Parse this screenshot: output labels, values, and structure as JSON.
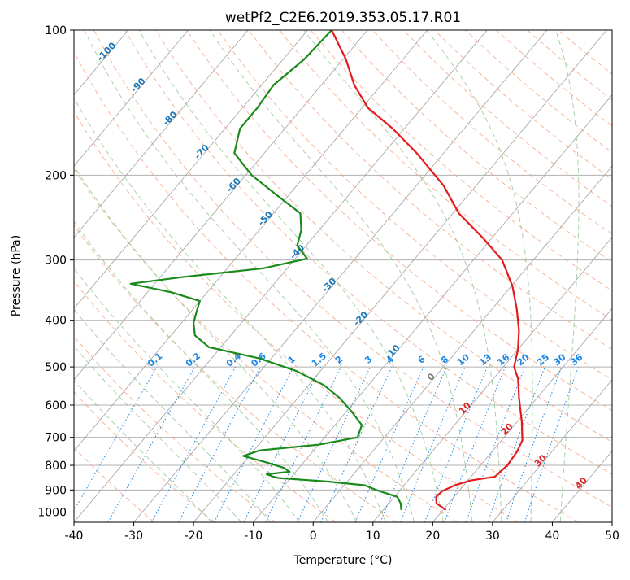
{
  "chart_data": {
    "type": "line",
    "subtype": "skew-T log-P thermodynamic diagram",
    "title": "wetPf2_C2E6.2019.353.05.17.R01",
    "xlabel": "Temperature (°C)",
    "ylabel": "Pressure (hPa)",
    "xlim": [
      -40,
      50
    ],
    "ylim": [
      1050,
      100
    ],
    "y_scale": "log",
    "x_ticks": [
      -40,
      -30,
      -20,
      -10,
      0,
      10,
      20,
      30,
      40,
      50
    ],
    "y_ticks": [
      1000,
      900,
      800,
      700,
      600,
      500,
      400,
      300,
      200,
      100
    ],
    "grid": true,
    "background_lines": {
      "isotherms_color": "#a0a0a0",
      "dry_adiabats_color": "#f4a582",
      "moist_adiabats_color": "#92c592",
      "mixing_ratio_color": "#1e88e5",
      "isotherm_labels": [
        "-100",
        "-90",
        "-80",
        "-70",
        "-60",
        "-50",
        "-40",
        "-30",
        "-20",
        "-10",
        "0",
        "10",
        "20",
        "30",
        "40"
      ],
      "mixing_ratio_labels": [
        "0.1",
        "0.2",
        "0.4",
        "0.6",
        "1",
        "1.5",
        "2",
        "3",
        "4",
        "6",
        "8",
        "10",
        "13",
        "16",
        "20",
        "25",
        "30",
        "36"
      ]
    },
    "series": [
      {
        "color": "#e41a1c",
        "points": [
          {
            "p": 990,
            "t": 20.5
          },
          {
            "p": 960,
            "t": 18.0
          },
          {
            "p": 930,
            "t": 17.0
          },
          {
            "p": 905,
            "t": 17.2
          },
          {
            "p": 880,
            "t": 18.5
          },
          {
            "p": 860,
            "t": 20.5
          },
          {
            "p": 845,
            "t": 24.0
          },
          {
            "p": 800,
            "t": 24.5
          },
          {
            "p": 750,
            "t": 24.2
          },
          {
            "p": 710,
            "t": 23.5
          },
          {
            "p": 650,
            "t": 20.8
          },
          {
            "p": 580,
            "t": 17.0
          },
          {
            "p": 530,
            "t": 14.2
          },
          {
            "p": 500,
            "t": 11.8
          },
          {
            "p": 460,
            "t": 10.0
          },
          {
            "p": 420,
            "t": 7.5
          },
          {
            "p": 380,
            "t": 4.2
          },
          {
            "p": 340,
            "t": 0.2
          },
          {
            "p": 300,
            "t": -5.2
          },
          {
            "p": 270,
            "t": -11.5
          },
          {
            "p": 240,
            "t": -19.0
          },
          {
            "p": 210,
            "t": -25.5
          },
          {
            "p": 180,
            "t": -34.5
          },
          {
            "p": 160,
            "t": -42.0
          },
          {
            "p": 145,
            "t": -49.0
          },
          {
            "p": 130,
            "t": -54.5
          },
          {
            "p": 115,
            "t": -59.5
          },
          {
            "p": 100,
            "t": -66.0
          }
        ]
      },
      {
        "color": "#1a8a1a",
        "points": [
          {
            "p": 990,
            "t": 13.0
          },
          {
            "p": 960,
            "t": 12.0
          },
          {
            "p": 930,
            "t": 10.5
          },
          {
            "p": 900,
            "t": 6.0
          },
          {
            "p": 880,
            "t": 3.5
          },
          {
            "p": 865,
            "t": -3.0
          },
          {
            "p": 850,
            "t": -12.0
          },
          {
            "p": 845,
            "t": -13.0
          },
          {
            "p": 835,
            "t": -14.5
          },
          {
            "p": 825,
            "t": -11.0
          },
          {
            "p": 810,
            "t": -12.5
          },
          {
            "p": 790,
            "t": -16.0
          },
          {
            "p": 765,
            "t": -21.0
          },
          {
            "p": 745,
            "t": -19.0
          },
          {
            "p": 725,
            "t": -10.0
          },
          {
            "p": 700,
            "t": -4.5
          },
          {
            "p": 660,
            "t": -5.5
          },
          {
            "p": 620,
            "t": -9.0
          },
          {
            "p": 580,
            "t": -13.0
          },
          {
            "p": 545,
            "t": -17.5
          },
          {
            "p": 510,
            "t": -24.0
          },
          {
            "p": 480,
            "t": -32.0
          },
          {
            "p": 455,
            "t": -42.0
          },
          {
            "p": 430,
            "t": -46.0
          },
          {
            "p": 405,
            "t": -48.0
          },
          {
            "p": 385,
            "t": -49.0
          },
          {
            "p": 365,
            "t": -50.0
          },
          {
            "p": 350,
            "t": -56.0
          },
          {
            "p": 336,
            "t": -64.0
          },
          {
            "p": 325,
            "t": -56.0
          },
          {
            "p": 312,
            "t": -44.0
          },
          {
            "p": 298,
            "t": -38.0
          },
          {
            "p": 280,
            "t": -41.5
          },
          {
            "p": 260,
            "t": -43.0
          },
          {
            "p": 240,
            "t": -45.5
          },
          {
            "p": 220,
            "t": -52.0
          },
          {
            "p": 200,
            "t": -59.0
          },
          {
            "p": 180,
            "t": -65.0
          },
          {
            "p": 160,
            "t": -67.5
          },
          {
            "p": 145,
            "t": -67.5
          },
          {
            "p": 130,
            "t": -68.0
          },
          {
            "p": 115,
            "t": -66.5
          },
          {
            "p": 100,
            "t": -66.0
          }
        ]
      }
    ]
  }
}
